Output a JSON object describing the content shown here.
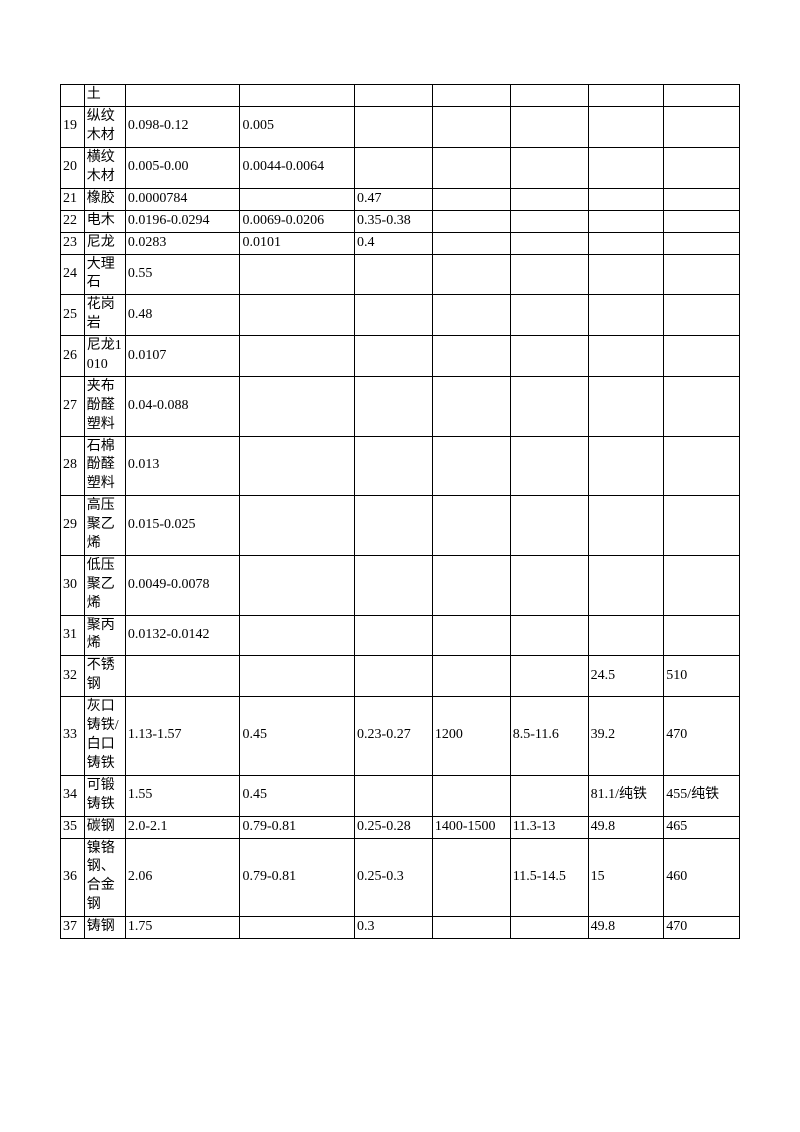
{
  "table": {
    "columns": [
      "num",
      "name",
      "c3",
      "c4",
      "c5",
      "c6",
      "c7",
      "c8",
      "c9"
    ],
    "col_classes": [
      "col-num",
      "col-name",
      "col-3",
      "col-4",
      "col-5",
      "col-6",
      "col-7",
      "col-8",
      "col-9"
    ],
    "border_color": "#000000",
    "background_color": "#ffffff",
    "text_color": "#000000",
    "font_size": 14,
    "rows": [
      {
        "num": "",
        "name": "土",
        "c3": "",
        "c4": "",
        "c5": "",
        "c6": "",
        "c7": "",
        "c8": "",
        "c9": ""
      },
      {
        "num": "19",
        "name": "纵纹木材",
        "c3": "0.098-0.12",
        "c4": "0.005",
        "c5": "",
        "c6": "",
        "c7": "",
        "c8": "",
        "c9": ""
      },
      {
        "num": "20",
        "name": "横纹木材",
        "c3": "0.005-0.00",
        "c4": "0.0044-0.0064",
        "c5": "",
        "c6": "",
        "c7": "",
        "c8": "",
        "c9": ""
      },
      {
        "num": "21",
        "name": "橡胶",
        "c3": "0.0000784",
        "c4": "",
        "c5": "0.47",
        "c6": "",
        "c7": "",
        "c8": "",
        "c9": ""
      },
      {
        "num": "22",
        "name": "电木",
        "c3": "0.0196-0.0294",
        "c4": "0.0069-0.0206",
        "c5": "0.35-0.38",
        "c6": "",
        "c7": "",
        "c8": "",
        "c9": ""
      },
      {
        "num": "23",
        "name": "尼龙",
        "c3": "0.0283",
        "c4": "0.0101",
        "c5": "0.4",
        "c6": "",
        "c7": "",
        "c8": "",
        "c9": ""
      },
      {
        "num": "24",
        "name": "大理石",
        "c3": "0.55",
        "c4": "",
        "c5": "",
        "c6": "",
        "c7": "",
        "c8": "",
        "c9": ""
      },
      {
        "num": "25",
        "name": "花岗岩",
        "c3": "0.48",
        "c4": "",
        "c5": "",
        "c6": "",
        "c7": "",
        "c8": "",
        "c9": ""
      },
      {
        "num": "26",
        "name": "尼龙1010",
        "c3": "0.0107",
        "c4": "",
        "c5": "",
        "c6": "",
        "c7": "",
        "c8": "",
        "c9": ""
      },
      {
        "num": "27",
        "name": "夹布酚醛塑料",
        "c3": "0.04-0.088",
        "c4": "",
        "c5": "",
        "c6": "",
        "c7": "",
        "c8": "",
        "c9": ""
      },
      {
        "num": "28",
        "name": "石棉酚醛塑料",
        "c3": "0.013",
        "c4": "",
        "c5": "",
        "c6": "",
        "c7": "",
        "c8": "",
        "c9": ""
      },
      {
        "num": "29",
        "name": "高压聚乙烯",
        "c3": "0.015-0.025",
        "c4": "",
        "c5": "",
        "c6": "",
        "c7": "",
        "c8": "",
        "c9": ""
      },
      {
        "num": "30",
        "name": "低压聚乙烯",
        "c3": "0.0049-0.0078",
        "c4": "",
        "c5": "",
        "c6": "",
        "c7": "",
        "c8": "",
        "c9": ""
      },
      {
        "num": "31",
        "name": "聚丙烯",
        "c3": "0.0132-0.0142",
        "c4": "",
        "c5": "",
        "c6": "",
        "c7": "",
        "c8": "",
        "c9": ""
      },
      {
        "num": "32",
        "name": "不锈钢",
        "c3": "",
        "c4": "",
        "c5": "",
        "c6": "",
        "c7": "",
        "c8": "24.5",
        "c9": "510"
      },
      {
        "num": "33",
        "name": "灰口铸铁/白口铸铁",
        "c3": "1.13-1.57",
        "c4": "0.45",
        "c5": "0.23-0.27",
        "c6": "1200",
        "c7": "8.5-11.6",
        "c8": "39.2",
        "c9": "470"
      },
      {
        "num": "34",
        "name": "可锻铸铁",
        "c3": "1.55",
        "c4": "0.45",
        "c5": "",
        "c6": "",
        "c7": "",
        "c8": "81.1/纯铁",
        "c9": "455/纯铁"
      },
      {
        "num": "35",
        "name": "碳钢",
        "c3": "2.0-2.1",
        "c4": "0.79-0.81",
        "c5": "0.25-0.28",
        "c6": "1400-1500",
        "c7": "11.3-13",
        "c8": "49.8",
        "c9": "465"
      },
      {
        "num": "36",
        "name": "镍铬钢、合金钢",
        "c3": "2.06",
        "c4": "0.79-0.81",
        "c5": "0.25-0.3",
        "c6": "",
        "c7": "11.5-14.5",
        "c8": "15",
        "c9": "460"
      },
      {
        "num": "37",
        "name": "铸钢",
        "c3": "1.75",
        "c4": "",
        "c5": "0.3",
        "c6": "",
        "c7": "",
        "c8": "49.8",
        "c9": "470"
      }
    ]
  }
}
